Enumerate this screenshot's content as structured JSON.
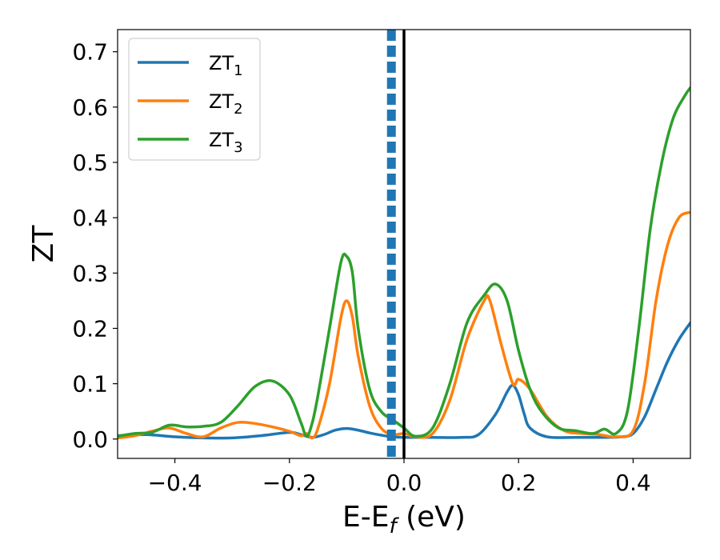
{
  "chart_data": {
    "type": "line",
    "xlabel": "E-E",
    "xlabel_sub": "f",
    "xlabel_unit": " (eV)",
    "ylabel": "ZT",
    "xlim": [
      -0.5,
      0.5
    ],
    "ylim": [
      -0.035,
      0.74
    ],
    "xticks": [
      -0.4,
      -0.2,
      0.0,
      0.2,
      0.4
    ],
    "xtick_labels": [
      "−0.4",
      "−0.2",
      "0.0",
      "0.2",
      "0.4"
    ],
    "yticks": [
      0.0,
      0.1,
      0.2,
      0.3,
      0.4,
      0.5,
      0.6,
      0.7
    ],
    "ytick_labels": [
      "0.0",
      "0.1",
      "0.2",
      "0.3",
      "0.4",
      "0.5",
      "0.6",
      "0.7"
    ],
    "grid": false,
    "legend_position": "top-left",
    "vlines": [
      {
        "x": -0.022,
        "color": "#1f77b4",
        "style": "dashed"
      },
      {
        "x": 0.0,
        "color": "#000000",
        "style": "solid"
      }
    ],
    "series": [
      {
        "name": "ZT",
        "name_sub": "1",
        "color": "#1f77b4",
        "x": [
          -0.5,
          -0.45,
          -0.4,
          -0.35,
          -0.3,
          -0.25,
          -0.2,
          -0.18,
          -0.16,
          -0.14,
          -0.12,
          -0.1,
          -0.08,
          -0.06,
          -0.04,
          -0.02,
          0.0,
          0.05,
          0.1,
          0.13,
          0.16,
          0.18,
          0.19,
          0.2,
          0.21,
          0.22,
          0.25,
          0.3,
          0.35,
          0.38,
          0.4,
          0.42,
          0.44,
          0.46,
          0.48,
          0.5
        ],
        "y": [
          0.006,
          0.008,
          0.004,
          0.002,
          0.002,
          0.006,
          0.012,
          0.008,
          0.003,
          0.008,
          0.016,
          0.019,
          0.016,
          0.011,
          0.007,
          0.004,
          0.003,
          0.003,
          0.003,
          0.008,
          0.045,
          0.085,
          0.097,
          0.08,
          0.045,
          0.02,
          0.004,
          0.003,
          0.003,
          0.004,
          0.01,
          0.04,
          0.09,
          0.14,
          0.18,
          0.21
        ]
      },
      {
        "name": "ZT",
        "name_sub": "2",
        "color": "#ff7f0e",
        "x": [
          -0.5,
          -0.47,
          -0.44,
          -0.41,
          -0.38,
          -0.35,
          -0.32,
          -0.29,
          -0.26,
          -0.23,
          -0.2,
          -0.18,
          -0.17,
          -0.16,
          -0.15,
          -0.13,
          -0.11,
          -0.1,
          -0.09,
          -0.08,
          -0.06,
          -0.04,
          -0.02,
          0.0,
          0.02,
          0.05,
          0.08,
          0.11,
          0.14,
          0.15,
          0.17,
          0.19,
          0.2,
          0.22,
          0.25,
          0.28,
          0.31,
          0.34,
          0.37,
          0.4,
          0.42,
          0.44,
          0.46,
          0.48,
          0.5
        ],
        "y": [
          0.002,
          0.006,
          0.014,
          0.02,
          0.01,
          0.004,
          0.02,
          0.03,
          0.028,
          0.022,
          0.014,
          0.006,
          0.01,
          0.002,
          0.02,
          0.1,
          0.22,
          0.25,
          0.22,
          0.15,
          0.06,
          0.02,
          0.008,
          0.01,
          0.004,
          0.01,
          0.07,
          0.18,
          0.25,
          0.25,
          0.17,
          0.1,
          0.108,
          0.09,
          0.04,
          0.015,
          0.01,
          0.008,
          0.004,
          0.015,
          0.1,
          0.25,
          0.35,
          0.4,
          0.41
        ]
      },
      {
        "name": "ZT",
        "name_sub": "3",
        "color": "#2ca02c",
        "x": [
          -0.5,
          -0.47,
          -0.44,
          -0.41,
          -0.38,
          -0.35,
          -0.32,
          -0.29,
          -0.26,
          -0.23,
          -0.2,
          -0.18,
          -0.17,
          -0.16,
          -0.15,
          -0.13,
          -0.11,
          -0.1,
          -0.09,
          -0.08,
          -0.06,
          -0.04,
          -0.02,
          0.0,
          0.02,
          0.05,
          0.08,
          0.11,
          0.14,
          0.16,
          0.18,
          0.2,
          0.22,
          0.24,
          0.27,
          0.3,
          0.33,
          0.35,
          0.37,
          0.39,
          0.41,
          0.43,
          0.45,
          0.47,
          0.49,
          0.5
        ],
        "y": [
          0.005,
          0.01,
          0.012,
          0.025,
          0.022,
          0.023,
          0.03,
          0.06,
          0.095,
          0.105,
          0.08,
          0.03,
          0.005,
          0.03,
          0.08,
          0.2,
          0.32,
          0.33,
          0.3,
          0.2,
          0.09,
          0.05,
          0.035,
          0.02,
          0.005,
          0.02,
          0.1,
          0.21,
          0.26,
          0.28,
          0.25,
          0.16,
          0.09,
          0.05,
          0.02,
          0.015,
          0.01,
          0.018,
          0.01,
          0.05,
          0.2,
          0.38,
          0.5,
          0.58,
          0.62,
          0.635
        ]
      }
    ]
  }
}
